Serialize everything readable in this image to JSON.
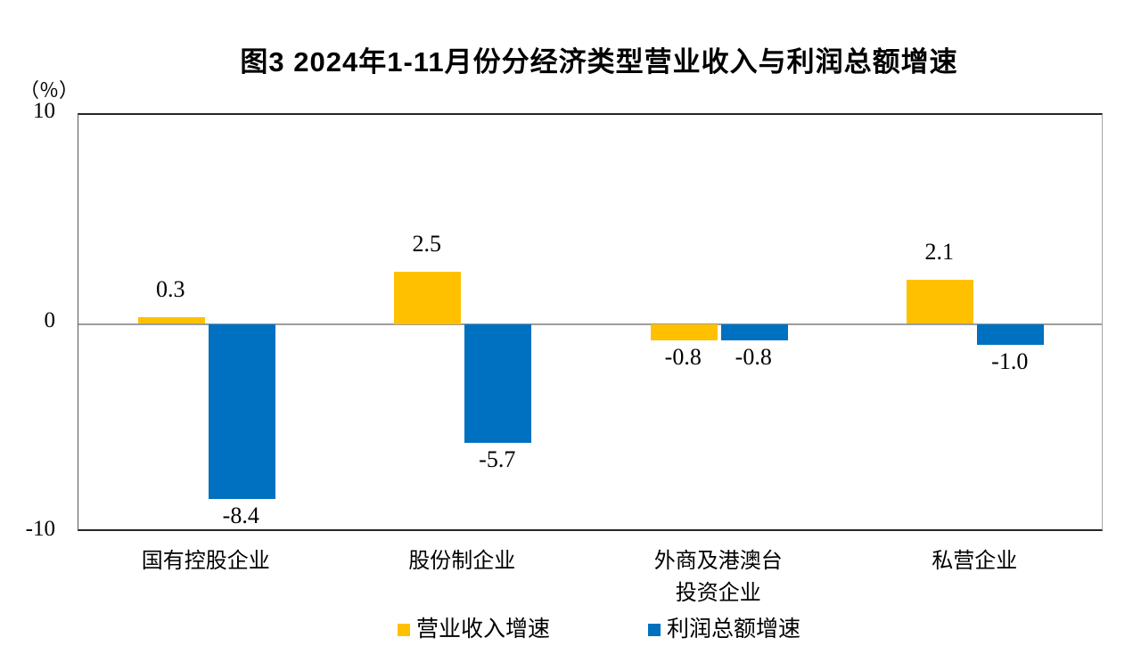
{
  "chart_data": {
    "type": "bar",
    "title": "图3 2024年1-11月份分经济类型营业收入与利润总额增速",
    "ylabel": "（％）",
    "xlabel": "",
    "categories": [
      "国有控股企业",
      "股份制企业",
      "外商及港澳台\n投资企业",
      "私营企业"
    ],
    "series": [
      {
        "name": "营业收入增速",
        "color": "#FFC000",
        "values": [
          0.3,
          2.5,
          -0.8,
          2.1
        ]
      },
      {
        "name": "利润总额增速",
        "color": "#0070C0",
        "values": [
          -8.4,
          -5.7,
          -0.8,
          -1.0
        ]
      }
    ],
    "value_labels": [
      [
        "0.3",
        "2.5",
        "-0.8",
        "2.1"
      ],
      [
        "-8.4",
        "-5.7",
        "-0.8",
        "-1.0"
      ]
    ],
    "ylim": [
      -10,
      10
    ],
    "yticks": [
      "10",
      "0",
      "-10"
    ],
    "grid": false,
    "legend_position": "bottom",
    "colors": {
      "axis": "#262626",
      "zero_line": "#9d9d9d",
      "background": "#ffffff"
    }
  }
}
